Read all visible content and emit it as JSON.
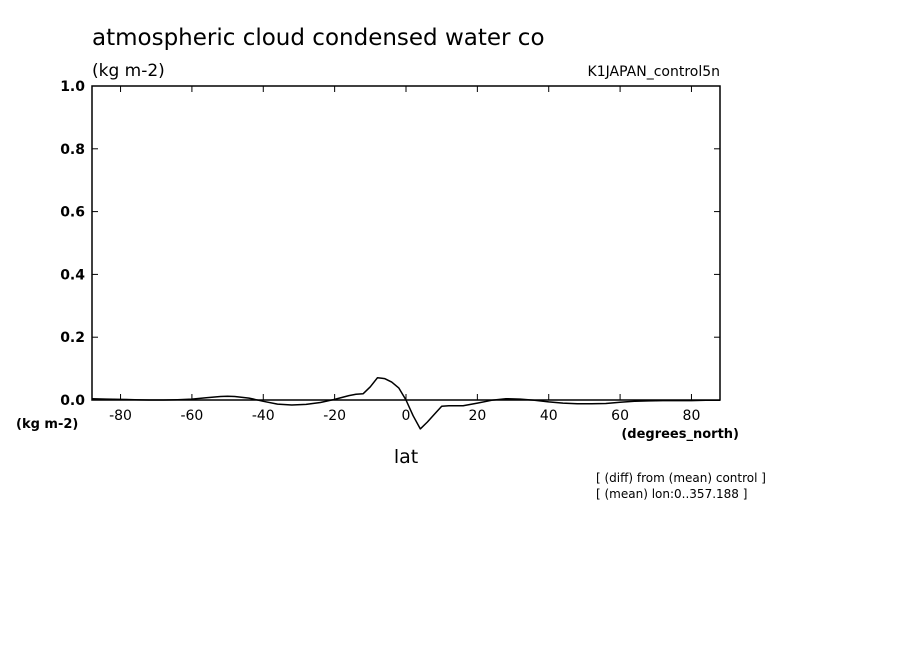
{
  "chart_data": {
    "type": "line",
    "title": "atmospheric cloud condensed water co",
    "units": "(kg m-2)",
    "run_label": "K1JAPAN_control5n",
    "xlabel": "lat",
    "xunits": "(degrees_north)",
    "ylabel": "(kg m-2)",
    "xlim": [
      -88,
      88
    ],
    "ylim": [
      0.0,
      1.0
    ],
    "xticks": [
      -80,
      -60,
      -40,
      -20,
      0,
      20,
      40,
      60,
      80
    ],
    "yticks": [
      0.0,
      0.2,
      0.4,
      0.6,
      0.8,
      1.0
    ],
    "ytick_labels": [
      "0.0",
      "0.2",
      "0.4",
      "0.6",
      "0.8",
      "1.0"
    ],
    "notes": [
      "[ (diff) from (mean) control ]",
      "[ (mean) lon:0..357.188 ]"
    ],
    "grid": false,
    "series": [
      {
        "color": "#000000",
        "x": [
          -88,
          -84,
          -80,
          -76,
          -72,
          -68,
          -64,
          -60,
          -56,
          -52,
          -50,
          -48,
          -44,
          -40,
          -36,
          -32,
          -28,
          -24,
          -20,
          -16,
          -14,
          -12,
          -10,
          -8,
          -6,
          -4,
          -2,
          0,
          2,
          4,
          6,
          8,
          10,
          12,
          16,
          20,
          24,
          28,
          32,
          36,
          40,
          44,
          48,
          52,
          56,
          60,
          64,
          68,
          72,
          76,
          80,
          84,
          88
        ],
        "y": [
          0.004,
          0.003,
          0.002,
          0.001,
          0.0,
          0.0,
          0.001,
          0.003,
          0.007,
          0.011,
          0.012,
          0.011,
          0.006,
          -0.004,
          -0.013,
          -0.016,
          -0.014,
          -0.008,
          0.002,
          0.014,
          0.018,
          0.02,
          0.042,
          0.071,
          0.068,
          0.057,
          0.038,
          0.0,
          -0.05,
          -0.092,
          -0.07,
          -0.045,
          -0.02,
          -0.018,
          -0.018,
          -0.01,
          -0.001,
          0.004,
          0.003,
          -0.001,
          -0.006,
          -0.01,
          -0.012,
          -0.012,
          -0.011,
          -0.007,
          -0.004,
          -0.003,
          -0.002,
          -0.002,
          -0.002,
          -0.001,
          -0.001
        ]
      }
    ]
  }
}
